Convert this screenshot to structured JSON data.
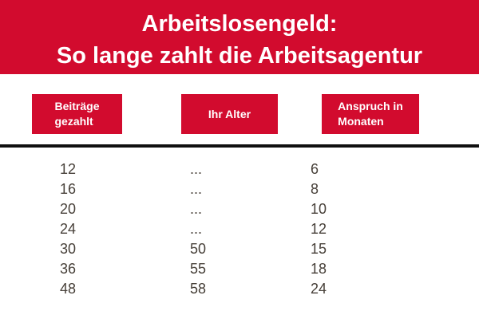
{
  "title": {
    "line1": "Arbeitslosengeld:",
    "line2": "So lange zahlt die Arbeitsagentur"
  },
  "columns": {
    "contributions": {
      "line1": "Beiträge",
      "line2": "gezahlt"
    },
    "age": {
      "label": "Ihr Alter"
    },
    "months": {
      "line1": "Anspruch in",
      "line2": "Monaten"
    }
  },
  "colors": {
    "accent_red": "#d20b2e",
    "text_dark": "#474039",
    "rule_black": "#101010"
  },
  "chart_data": {
    "type": "table",
    "title": "Arbeitslosengeld: So lange zahlt die Arbeitsagentur",
    "columns": [
      "Beiträge gezahlt",
      "Ihr Alter",
      "Anspruch in Monaten"
    ],
    "rows": [
      [
        12,
        "...",
        6
      ],
      [
        16,
        "...",
        8
      ],
      [
        20,
        "...",
        10
      ],
      [
        24,
        "...",
        12
      ],
      [
        30,
        50,
        15
      ],
      [
        36,
        55,
        18
      ],
      [
        48,
        58,
        24
      ]
    ]
  }
}
